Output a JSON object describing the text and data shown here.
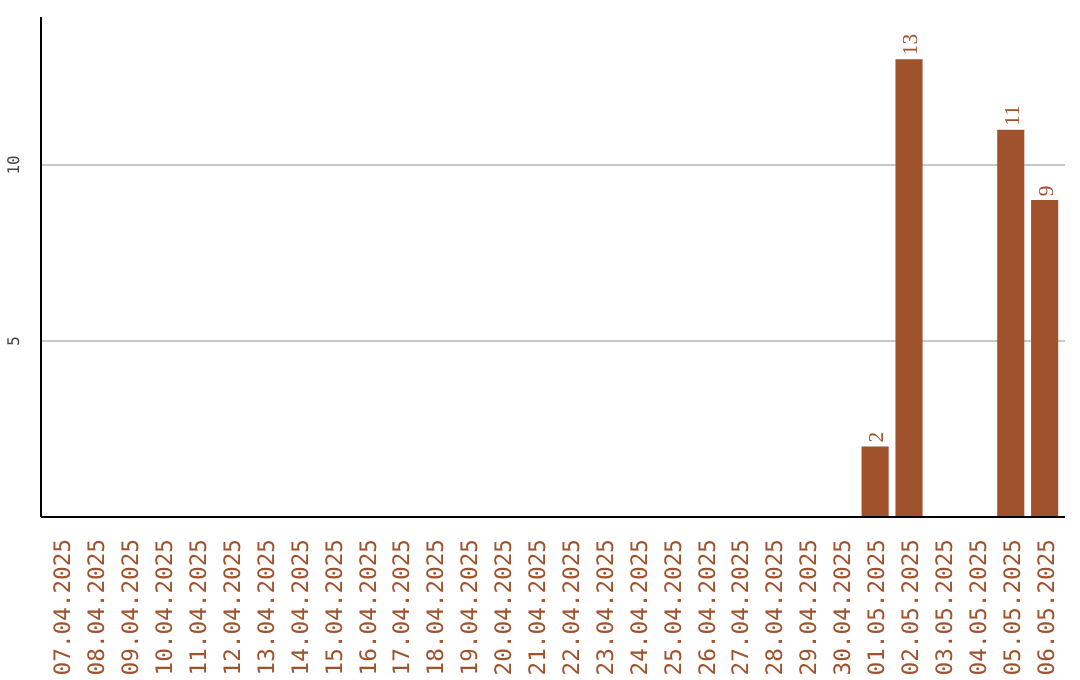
{
  "chart_data": {
    "type": "bar",
    "categories": [
      "07.04.2025",
      "08.04.2025",
      "09.04.2025",
      "10.04.2025",
      "11.04.2025",
      "12.04.2025",
      "13.04.2025",
      "14.04.2025",
      "15.04.2025",
      "16.04.2025",
      "17.04.2025",
      "18.04.2025",
      "19.04.2025",
      "20.04.2025",
      "21.04.2025",
      "22.04.2025",
      "23.04.2025",
      "24.04.2025",
      "25.04.2025",
      "26.04.2025",
      "27.04.2025",
      "28.04.2025",
      "29.04.2025",
      "30.04.2025",
      "01.05.2025",
      "02.05.2025",
      "03.05.2025",
      "04.05.2025",
      "05.05.2025",
      "06.05.2025"
    ],
    "values": [
      0,
      0,
      0,
      0,
      0,
      0,
      0,
      0,
      0,
      0,
      0,
      0,
      0,
      0,
      0,
      0,
      0,
      0,
      0,
      0,
      0,
      0,
      0,
      0,
      2,
      13,
      0,
      0,
      11,
      9
    ],
    "value_labels": [
      null,
      null,
      null,
      null,
      null,
      null,
      null,
      null,
      null,
      null,
      null,
      null,
      null,
      null,
      null,
      null,
      null,
      null,
      null,
      null,
      null,
      null,
      null,
      null,
      "2",
      "13",
      null,
      null,
      "11",
      "9"
    ],
    "color": "#a0522d",
    "ylim": [
      0,
      14.2
    ],
    "yticks": [
      5,
      10
    ],
    "grid": "y"
  }
}
